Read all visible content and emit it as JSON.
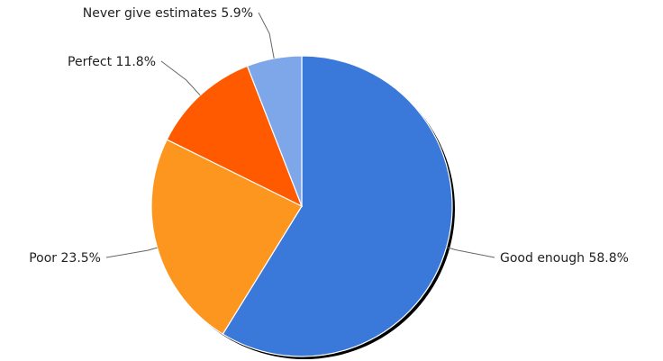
{
  "chart_data": {
    "type": "pie",
    "title": "",
    "start_angle_deg": 0,
    "direction": "clockwise",
    "slices": [
      {
        "name": "Good enough",
        "value": 58.8,
        "label": "58.8%",
        "color": "#3a78d9"
      },
      {
        "name": "Poor",
        "value": 23.5,
        "label": "23.5%",
        "color": "#fd961e"
      },
      {
        "name": "Perfect",
        "value": 11.8,
        "label": "11.8%",
        "color": "#ff5a00"
      },
      {
        "name": "Never give estimates",
        "value": 5.9,
        "label": "5.9%",
        "color": "#7ea7ea"
      }
    ],
    "legend": "none"
  }
}
